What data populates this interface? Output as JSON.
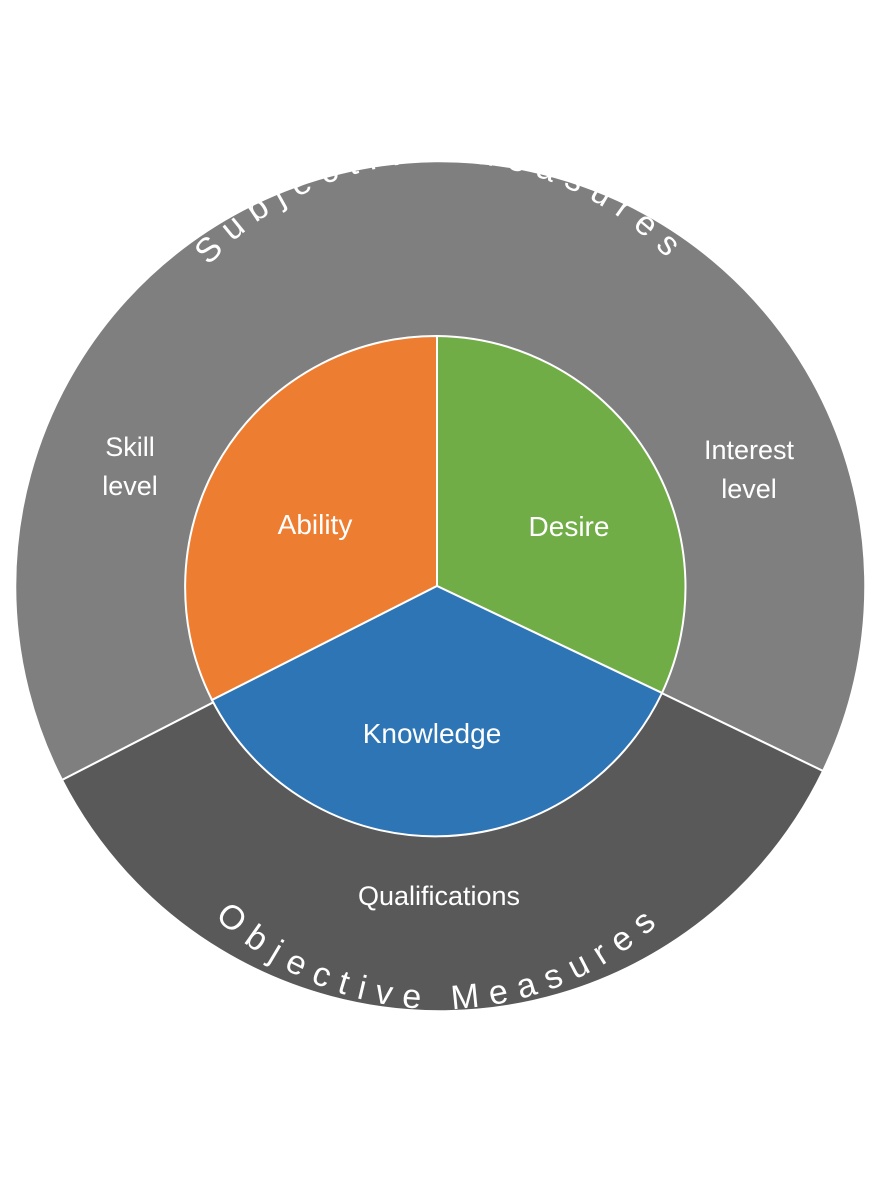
{
  "outer_ring": {
    "top_label": "Subjective Measures",
    "bottom_label": "Objective Measures",
    "subjective_color": "#7f7f7f",
    "objective_color": "#595959"
  },
  "outer_labels": {
    "skill_line1": "Skill",
    "skill_line2": "level",
    "interest_line1": "Interest",
    "interest_line2": "level",
    "qualifications": "Qualifications"
  },
  "inner_circle": {
    "ability": {
      "label": "Ability",
      "color": "#ed7d31"
    },
    "desire": {
      "label": "Desire",
      "color": "#70ad47"
    },
    "knowledge": {
      "label": "Knowledge",
      "color": "#2e75b6"
    }
  },
  "text_color": "#ffffff",
  "divider_color": "#ffffff"
}
